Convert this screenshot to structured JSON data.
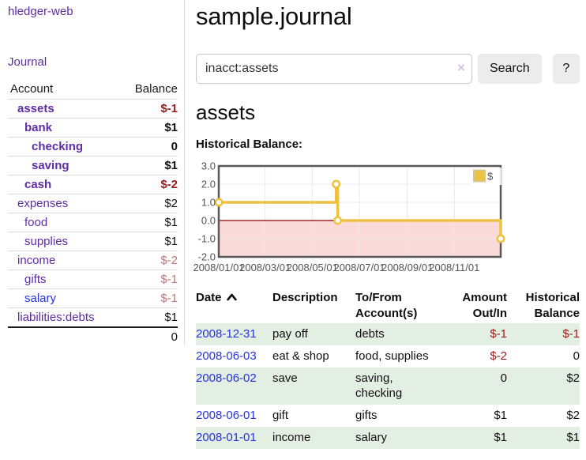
{
  "app": {
    "brand": "hledger-web",
    "nav_journal": "Journal"
  },
  "colors": {
    "link_purple": "#5e2ca5",
    "link_blue": "#2733df",
    "negative_strong": "#9c1b1b",
    "negative_light": "#c17575",
    "row_stripe_green": "#e2efe2",
    "series_gold": "#EDC240"
  },
  "sidebar": {
    "headers": {
      "account": "Account",
      "balance": "Balance"
    },
    "accounts": [
      {
        "name": "assets",
        "indent": 1,
        "bold": true,
        "balance": "$-1",
        "balance_class": "neg-strong"
      },
      {
        "name": "bank",
        "indent": 2,
        "bold": true,
        "balance": "$1",
        "balance_class": "pos"
      },
      {
        "name": "checking",
        "indent": 3,
        "bold": true,
        "balance": "0",
        "balance_class": "pos"
      },
      {
        "name": "saving",
        "indent": 3,
        "bold": true,
        "balance": "$1",
        "balance_class": "pos"
      },
      {
        "name": "cash",
        "indent": 2,
        "bold": true,
        "balance": "$-2",
        "balance_class": "neg-strong"
      },
      {
        "name": "expenses",
        "indent": 1,
        "bold": false,
        "balance": "$2",
        "balance_class": "pos"
      },
      {
        "name": "food",
        "indent": 2,
        "bold": false,
        "balance": "$1",
        "balance_class": "pos"
      },
      {
        "name": "supplies",
        "indent": 2,
        "bold": false,
        "balance": "$1",
        "balance_class": "pos"
      },
      {
        "name": "income",
        "indent": 1,
        "bold": false,
        "balance": "$-2",
        "balance_class": "neg-light"
      },
      {
        "name": "gifts",
        "indent": 2,
        "bold": false,
        "balance": "$-1",
        "balance_class": "neg-light"
      },
      {
        "name": "salary",
        "indent": 2,
        "bold": false,
        "balance": "$-1",
        "balance_class": "neg-light",
        "link_class": "blue"
      },
      {
        "name": "liabilities:debts",
        "indent": 1,
        "bold": false,
        "balance": "$1",
        "balance_class": "pos"
      }
    ],
    "total": "0"
  },
  "header": {
    "title": "sample.journal"
  },
  "search": {
    "value": "inacct:assets",
    "clear_icon": "×",
    "button": "Search",
    "help_button": "?"
  },
  "account_page": {
    "title": "assets",
    "chart_label": "Historical Balance:"
  },
  "chart_data": {
    "type": "line",
    "title": "Historical Balance",
    "legend": {
      "label": "$",
      "position": "top-right"
    },
    "x_start": "2008-01-01",
    "x_range_days": 365,
    "ylim": [
      -2,
      3
    ],
    "y_ticks": [
      "3.0",
      "2.0",
      "1.0",
      "0.0",
      "-1.0",
      "-2.0"
    ],
    "x_ticks": [
      "2008/01/01",
      "2008/03/01",
      "2008/05/01",
      "2008/07/01",
      "2008/09/01",
      "2008/11/01"
    ],
    "grid": true,
    "zero_line_color": "#8b0000",
    "negative_region_color": "#fbdada",
    "series": [
      {
        "name": "$",
        "color": "#EDC240",
        "steps": true,
        "points": [
          {
            "date": "2008-01-01",
            "value": 1
          },
          {
            "date": "2008-06-01",
            "value": 2
          },
          {
            "date": "2008-06-03",
            "value": 0
          },
          {
            "date": "2008-12-31",
            "value": -1
          }
        ]
      }
    ]
  },
  "register": {
    "headers": [
      {
        "label": "Date",
        "align": "left",
        "sortable": true
      },
      {
        "label": "Description",
        "align": "left"
      },
      {
        "label": "To/From Account(s)",
        "align": "left"
      },
      {
        "label": "Amount Out/In",
        "align": "right"
      },
      {
        "label": "Historical Balance",
        "align": "right"
      }
    ],
    "rows": [
      {
        "date": "2008-12-31",
        "description": "pay off",
        "accounts": "debts",
        "amount": "$-1",
        "amount_neg": true,
        "balance": "$-1",
        "balance_neg": true,
        "stripe": true
      },
      {
        "date": "2008-06-03",
        "description": "eat & shop",
        "accounts": "food, supplies",
        "amount": "$-2",
        "amount_neg": true,
        "balance": "0",
        "balance_neg": false,
        "stripe": false
      },
      {
        "date": "2008-06-02",
        "description": "save",
        "accounts": "saving, checking",
        "amount": "0",
        "amount_neg": false,
        "balance": "$2",
        "balance_neg": false,
        "stripe": true
      },
      {
        "date": "2008-06-01",
        "description": "gift",
        "accounts": "gifts",
        "amount": "$1",
        "amount_neg": false,
        "balance": "$2",
        "balance_neg": false,
        "stripe": false
      },
      {
        "date": "2008-01-01",
        "description": "income",
        "accounts": "salary",
        "amount": "$1",
        "amount_neg": false,
        "balance": "$1",
        "balance_neg": false,
        "stripe": true
      }
    ]
  }
}
